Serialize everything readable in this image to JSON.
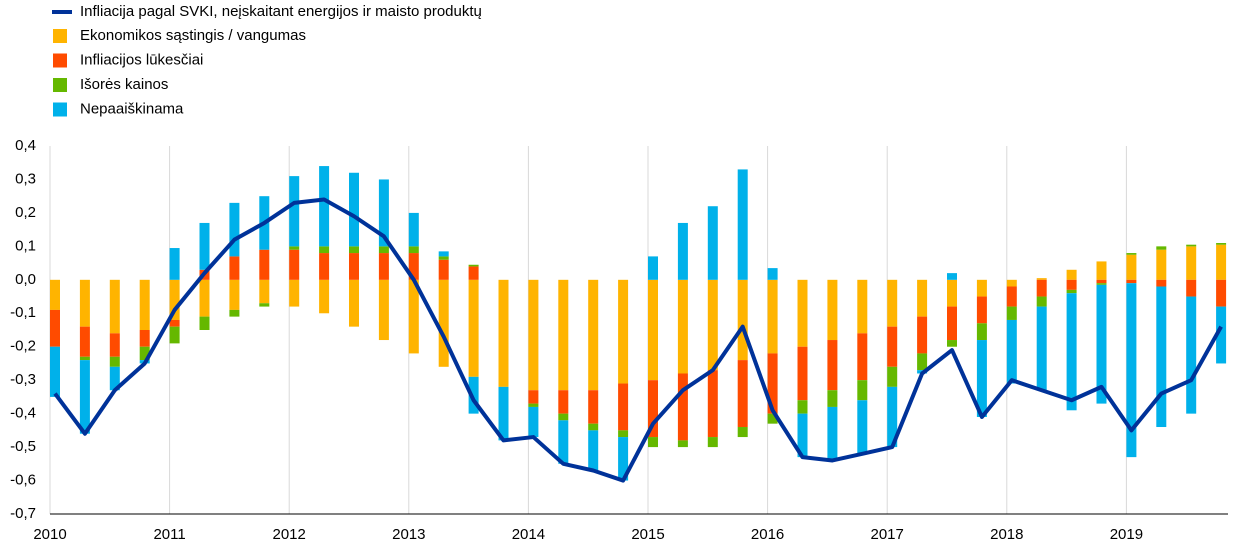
{
  "chart_data": {
    "type": "bar",
    "categories": [
      "2010",
      null,
      null,
      null,
      "2011",
      null,
      null,
      null,
      "2012",
      null,
      null,
      null,
      "2013",
      null,
      null,
      null,
      "2014",
      null,
      null,
      null,
      "2015",
      null,
      null,
      null,
      "2016",
      null,
      null,
      null,
      "2017",
      null,
      null,
      null,
      "2018",
      null,
      null,
      null,
      "2019",
      null,
      null,
      null
    ],
    "series": [
      {
        "name": "Ekonomikos sąstingis / vangumas",
        "color": "#ffb400",
        "values": [
          -0.09,
          -0.14,
          -0.16,
          -0.15,
          -0.12,
          -0.11,
          -0.09,
          -0.07,
          -0.08,
          -0.1,
          -0.14,
          -0.18,
          -0.22,
          -0.26,
          -0.29,
          -0.32,
          -0.33,
          -0.33,
          -0.33,
          -0.31,
          -0.3,
          -0.28,
          -0.27,
          -0.24,
          -0.22,
          -0.2,
          -0.18,
          -0.16,
          -0.14,
          -0.11,
          -0.08,
          -0.05,
          -0.02,
          0.005,
          0.03,
          0.055,
          0.075,
          0.09,
          0.1,
          0.105
        ]
      },
      {
        "name": "Infliacijos lūkesčiai",
        "color": "#ff4b00",
        "values": [
          -0.11,
          -0.09,
          -0.07,
          -0.05,
          -0.02,
          0.03,
          0.07,
          0.09,
          0.09,
          0.08,
          0.08,
          0.08,
          0.08,
          0.06,
          0.04,
          0,
          -0.04,
          -0.07,
          -0.1,
          -0.14,
          -0.17,
          -0.2,
          -0.2,
          -0.2,
          -0.18,
          -0.16,
          -0.15,
          -0.14,
          -0.12,
          -0.11,
          -0.1,
          -0.08,
          -0.06,
          -0.05,
          -0.03,
          -0.01,
          -0.01,
          -0.02,
          -0.05,
          -0.08
        ]
      },
      {
        "name": "Išorės kainos",
        "color": "#65b800",
        "values": [
          0,
          -0.01,
          -0.03,
          -0.04,
          -0.05,
          -0.04,
          -0.02,
          -0.01,
          0.01,
          0.02,
          0.02,
          0.02,
          0.02,
          0.01,
          0.005,
          0,
          -0.01,
          -0.02,
          -0.02,
          -0.02,
          -0.03,
          -0.02,
          -0.03,
          -0.03,
          -0.03,
          -0.04,
          -0.05,
          -0.06,
          -0.06,
          -0.05,
          -0.02,
          -0.05,
          -0.04,
          -0.03,
          -0.01,
          -0.005,
          0.005,
          0.01,
          0.005,
          0.005
        ]
      },
      {
        "name": "Nepaaiškinama",
        "color": "#00b1ea",
        "values": [
          -0.15,
          -0.22,
          -0.07,
          -0.01,
          0.095,
          0.14,
          0.16,
          0.16,
          0.21,
          0.24,
          0.22,
          0.2,
          0.1,
          0.015,
          -0.11,
          -0.16,
          -0.09,
          -0.13,
          -0.12,
          -0.13,
          0.07,
          0.17,
          0.22,
          0.33,
          0.035,
          -0.13,
          -0.16,
          -0.16,
          -0.18,
          -0.01,
          0.02,
          -0.23,
          -0.19,
          -0.25,
          -0.35,
          -0.355,
          -0.52,
          -0.42,
          -0.35,
          -0.17
        ]
      }
    ],
    "line": {
      "name": "Infliacija pagal SVKI, neįskaitant energijos ir maisto produktų",
      "color": "#003299",
      "values": [
        -0.34,
        -0.46,
        -0.33,
        -0.25,
        -0.09,
        0.02,
        0.12,
        0.17,
        0.23,
        0.24,
        0.19,
        0.13,
        0.0,
        -0.17,
        -0.36,
        -0.48,
        -0.47,
        -0.55,
        -0.57,
        -0.6,
        -0.43,
        -0.33,
        -0.27,
        -0.14,
        -0.39,
        -0.53,
        -0.54,
        -0.52,
        -0.5,
        -0.28,
        -0.21,
        -0.41,
        -0.3,
        -0.33,
        -0.36,
        -0.32,
        -0.45,
        -0.34,
        -0.3,
        -0.14
      ]
    },
    "ylim": [
      -0.7,
      0.4
    ],
    "yticks": [
      {
        "value": 0.4,
        "label": "0,4"
      },
      {
        "value": 0.3,
        "label": "0,3"
      },
      {
        "value": 0.2,
        "label": "0,2"
      },
      {
        "value": 0.1,
        "label": "0,1"
      },
      {
        "value": 0,
        "label": "0,0"
      },
      {
        "value": -0.1,
        "label": "-0,1"
      },
      {
        "value": -0.2,
        "label": "-0,2"
      },
      {
        "value": -0.3,
        "label": "-0,3"
      },
      {
        "value": -0.4,
        "label": "-0,4"
      },
      {
        "value": -0.5,
        "label": "-0,5"
      },
      {
        "value": -0.6,
        "label": "-0,6"
      },
      {
        "value": -0.7,
        "label": "-0,7"
      }
    ],
    "grid": true
  }
}
